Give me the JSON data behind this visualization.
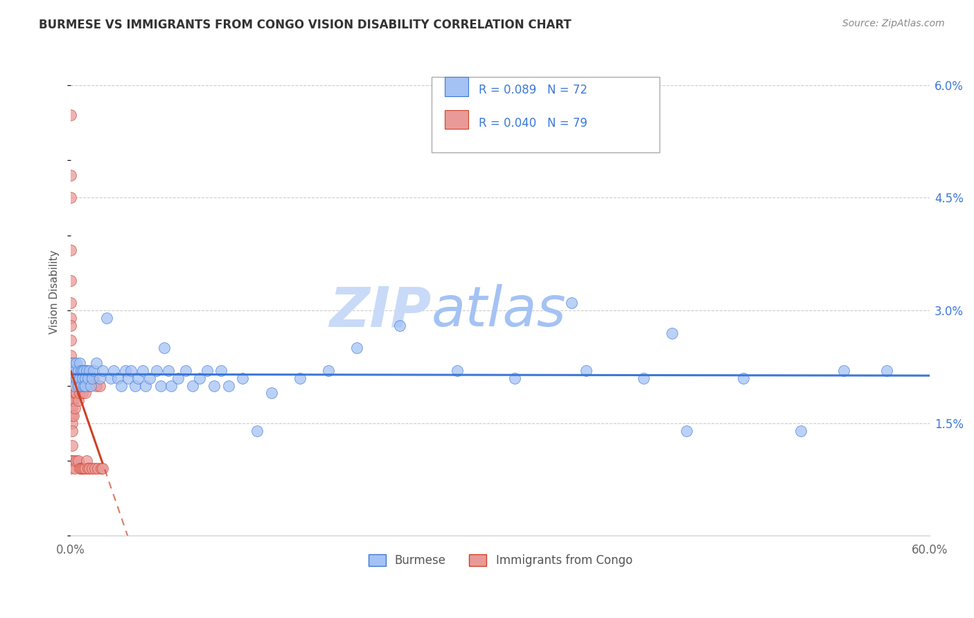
{
  "title": "BURMESE VS IMMIGRANTS FROM CONGO VISION DISABILITY CORRELATION CHART",
  "source": "Source: ZipAtlas.com",
  "xlabel_burmese": "Burmese",
  "xlabel_congo": "Immigrants from Congo",
  "ylabel": "Vision Disability",
  "xlim": [
    0.0,
    0.6
  ],
  "ylim": [
    0.0,
    0.065
  ],
  "R_burmese": 0.089,
  "N_burmese": 72,
  "R_congo": 0.04,
  "N_congo": 79,
  "blue_color": "#a4c2f4",
  "pink_color": "#ea9999",
  "blue_line_color": "#3c78d8",
  "pink_line_color": "#cc4125",
  "text_color": "#3c78d8",
  "watermark_color_zip": "#c9daf8",
  "watermark_color_atlas": "#a4c2f4",
  "burmese_x": [
    0.001,
    0.002,
    0.002,
    0.003,
    0.003,
    0.004,
    0.004,
    0.005,
    0.005,
    0.006,
    0.006,
    0.007,
    0.007,
    0.008,
    0.008,
    0.009,
    0.009,
    0.01,
    0.01,
    0.011,
    0.012,
    0.013,
    0.014,
    0.015,
    0.016,
    0.018,
    0.02,
    0.022,
    0.025,
    0.028,
    0.03,
    0.033,
    0.035,
    0.038,
    0.04,
    0.042,
    0.045,
    0.047,
    0.05,
    0.052,
    0.055,
    0.06,
    0.063,
    0.065,
    0.068,
    0.07,
    0.075,
    0.08,
    0.085,
    0.09,
    0.095,
    0.1,
    0.105,
    0.11,
    0.12,
    0.13,
    0.14,
    0.16,
    0.18,
    0.2,
    0.23,
    0.27,
    0.31,
    0.36,
    0.4,
    0.43,
    0.47,
    0.51,
    0.54,
    0.57,
    0.35,
    0.42
  ],
  "burmese_y": [
    0.022,
    0.021,
    0.023,
    0.02,
    0.022,
    0.021,
    0.023,
    0.022,
    0.02,
    0.021,
    0.023,
    0.022,
    0.02,
    0.022,
    0.021,
    0.02,
    0.022,
    0.021,
    0.02,
    0.022,
    0.021,
    0.022,
    0.02,
    0.021,
    0.022,
    0.023,
    0.021,
    0.022,
    0.029,
    0.021,
    0.022,
    0.021,
    0.02,
    0.022,
    0.021,
    0.022,
    0.02,
    0.021,
    0.022,
    0.02,
    0.021,
    0.022,
    0.02,
    0.025,
    0.022,
    0.02,
    0.021,
    0.022,
    0.02,
    0.021,
    0.022,
    0.02,
    0.022,
    0.02,
    0.021,
    0.014,
    0.019,
    0.021,
    0.022,
    0.025,
    0.028,
    0.022,
    0.021,
    0.022,
    0.021,
    0.014,
    0.021,
    0.014,
    0.022,
    0.022,
    0.031,
    0.027
  ],
  "congo_x": [
    0.0,
    0.0,
    0.0,
    0.0,
    0.0,
    0.0,
    0.0,
    0.0,
    0.0,
    0.0,
    0.0,
    0.0,
    0.0,
    0.0,
    0.0,
    0.0,
    0.0,
    0.0,
    0.0,
    0.0,
    0.001,
    0.001,
    0.001,
    0.001,
    0.001,
    0.001,
    0.001,
    0.001,
    0.001,
    0.001,
    0.001,
    0.002,
    0.002,
    0.002,
    0.002,
    0.002,
    0.002,
    0.003,
    0.003,
    0.003,
    0.003,
    0.003,
    0.004,
    0.004,
    0.004,
    0.004,
    0.005,
    0.005,
    0.005,
    0.005,
    0.006,
    0.006,
    0.006,
    0.007,
    0.007,
    0.007,
    0.008,
    0.008,
    0.008,
    0.009,
    0.009,
    0.01,
    0.01,
    0.01,
    0.011,
    0.011,
    0.012,
    0.012,
    0.013,
    0.013,
    0.014,
    0.015,
    0.016,
    0.017,
    0.018,
    0.019,
    0.02,
    0.021,
    0.022
  ],
  "congo_y": [
    0.056,
    0.048,
    0.045,
    0.038,
    0.034,
    0.031,
    0.029,
    0.028,
    0.026,
    0.024,
    0.023,
    0.022,
    0.021,
    0.02,
    0.019,
    0.018,
    0.017,
    0.016,
    0.01,
    0.009,
    0.022,
    0.021,
    0.02,
    0.019,
    0.018,
    0.017,
    0.016,
    0.015,
    0.014,
    0.012,
    0.01,
    0.022,
    0.021,
    0.02,
    0.018,
    0.016,
    0.01,
    0.022,
    0.02,
    0.019,
    0.017,
    0.009,
    0.022,
    0.021,
    0.019,
    0.01,
    0.022,
    0.02,
    0.018,
    0.01,
    0.021,
    0.019,
    0.009,
    0.022,
    0.02,
    0.009,
    0.021,
    0.019,
    0.009,
    0.021,
    0.009,
    0.021,
    0.019,
    0.009,
    0.022,
    0.01,
    0.021,
    0.009,
    0.02,
    0.009,
    0.021,
    0.009,
    0.021,
    0.009,
    0.02,
    0.009,
    0.02,
    0.009,
    0.009
  ]
}
